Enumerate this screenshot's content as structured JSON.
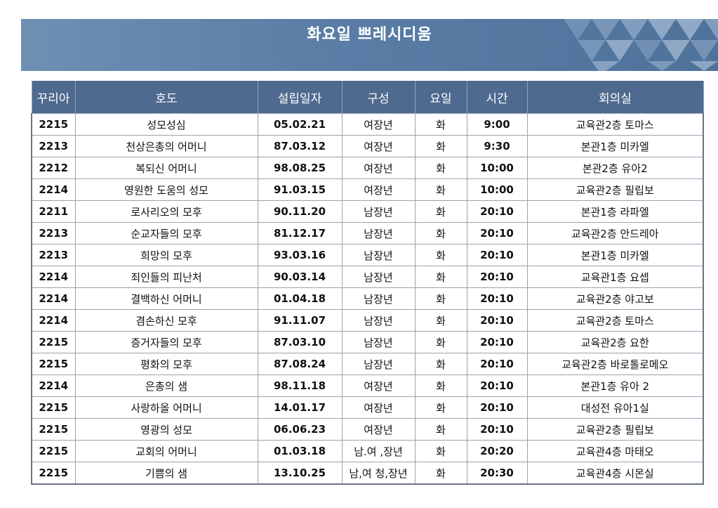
{
  "title": "화요일 쁘레시디움",
  "headers": {
    "curia": "꾸리아",
    "name": "호도",
    "founded": "설립일자",
    "members": "구성",
    "day": "요일",
    "time": "시간",
    "room": "회의실"
  },
  "rows": [
    {
      "curia": "2215",
      "name": "성모성심",
      "founded": "05.02.21",
      "members": "여장년",
      "day": "화",
      "time": "9:00",
      "room": "교육관2층 토마스"
    },
    {
      "curia": "2213",
      "name": "천상은총의 어머니",
      "founded": "87.03.12",
      "members": "여장년",
      "day": "화",
      "time": "9:30",
      "room": "본관1층 미카엘"
    },
    {
      "curia": "2212",
      "name": "복되신 어머니",
      "founded": "98.08.25",
      "members": "여장년",
      "day": "화",
      "time": "10:00",
      "room": "본관2층 유아2"
    },
    {
      "curia": "2214",
      "name": "영원한 도움의 성모",
      "founded": "91.03.15",
      "members": "여장년",
      "day": "화",
      "time": "10:00",
      "room": "교육관2층 필립보"
    },
    {
      "curia": "2211",
      "name": "로사리오의 모후",
      "founded": "90.11.20",
      "members": "남장년",
      "day": "화",
      "time": "20:10",
      "room": "본관1층 라파엘"
    },
    {
      "curia": "2213",
      "name": "순교자들의 모후",
      "founded": "81.12.17",
      "members": "남장년",
      "day": "화",
      "time": "20:10",
      "room": "교육관2층 안드레아"
    },
    {
      "curia": "2213",
      "name": "희망의 모후",
      "founded": "93.03.16",
      "members": "남장년",
      "day": "화",
      "time": "20:10",
      "room": "본관1층 미카엘"
    },
    {
      "curia": "2214",
      "name": "죄인들의 피난처",
      "founded": "90.03.14",
      "members": "남장년",
      "day": "화",
      "time": "20:10",
      "room": "교육관1층 요셉"
    },
    {
      "curia": "2214",
      "name": "결백하신 어머니",
      "founded": "01.04.18",
      "members": "남장년",
      "day": "화",
      "time": "20:10",
      "room": "교육관2층 야고보"
    },
    {
      "curia": "2214",
      "name": "겸손하신 모후",
      "founded": "91.11.07",
      "members": "남장년",
      "day": "화",
      "time": "20:10",
      "room": "교육관2층 토마스"
    },
    {
      "curia": "2215",
      "name": "증거자들의 모후",
      "founded": "87.03.10",
      "members": "남장년",
      "day": "화",
      "time": "20:10",
      "room": "교육관2층 요한"
    },
    {
      "curia": "2215",
      "name": "평화의 모후",
      "founded": "87.08.24",
      "members": "남장년",
      "day": "화",
      "time": "20:10",
      "room": "교육관2층 바로톨로메오"
    },
    {
      "curia": "2214",
      "name": "은총의 샘",
      "founded": "98.11.18",
      "members": "여장년",
      "day": "화",
      "time": "20:10",
      "room": "본관1층 유아 2"
    },
    {
      "curia": "2215",
      "name": "사랑하올 어머니",
      "founded": "14.01.17",
      "members": "여장년",
      "day": "화",
      "time": "20:10",
      "room": "대성전 유아1실"
    },
    {
      "curia": "2215",
      "name": "영광의 성모",
      "founded": "06.06.23",
      "members": "여장년",
      "day": "화",
      "time": "20:10",
      "room": "교육관2층 필립보"
    },
    {
      "curia": "2215",
      "name": "교회의 어머니",
      "founded": "01.03.18",
      "members": "남.여 ,장년",
      "day": "화",
      "time": "20:20",
      "room": "교육관4층 마태오"
    },
    {
      "curia": "2215",
      "name": "기쁨의 샘",
      "founded": "13.10.25",
      "members": "남,여 청,장년",
      "day": "화",
      "time": "20:30",
      "room": "교육관4층 시몬실"
    }
  ]
}
